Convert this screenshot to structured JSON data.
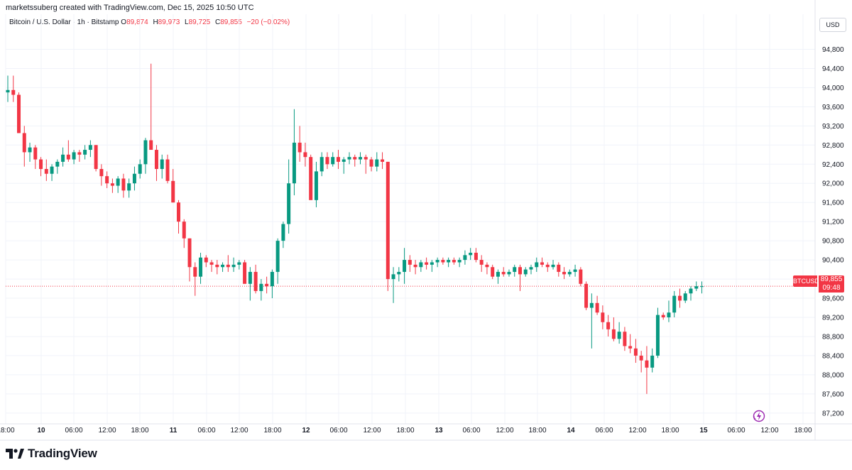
{
  "header": {
    "credit": "marketssuberg created with TradingView.com, Dec 15, 2025 10:50 UTC"
  },
  "symbol": {
    "name": "Bitcoin / U.S. Dollar · 1h · Bitstamp",
    "o_label": "O",
    "o_value": "89,874",
    "h_label": "H",
    "h_value": "89,973",
    "l_label": "L",
    "l_value": "89,725",
    "c_label": "C",
    "c_value": "89,855",
    "change": "−20 (−0.02%)"
  },
  "price_axis": {
    "currency": "USD",
    "ticks": [
      "94,800",
      "94,400",
      "94,000",
      "93,600",
      "93,200",
      "92,800",
      "92,400",
      "92,000",
      "91,600",
      "91,200",
      "90,800",
      "90,400",
      "90,000",
      "89,600",
      "89,200",
      "88,800",
      "88,400",
      "88,000",
      "87,600",
      "87,200"
    ]
  },
  "time_axis": {
    "ticks": [
      "18:00",
      "10",
      "06:00",
      "12:00",
      "18:00",
      "11",
      "06:00",
      "12:00",
      "18:00",
      "12",
      "06:00",
      "12:00",
      "18:00",
      "13",
      "06:00",
      "12:00",
      "18:00",
      "14",
      "06:00",
      "12:00",
      "18:00",
      "15",
      "06:00",
      "12:00",
      "18:00"
    ]
  },
  "last_price": {
    "symbol": "BTCUSD",
    "value": "89,855",
    "countdown": "09:48"
  },
  "footer": {
    "brand": "TradingView"
  },
  "colors": {
    "up": "#089981",
    "down": "#F23645",
    "grid": "#f0f3fa",
    "text": "#131722"
  },
  "chart_data": {
    "type": "candlestick",
    "title": "Bitcoin / U.S. Dollar · 1h · Bitstamp",
    "ylim": [
      86950,
      95250
    ],
    "y_ticks": [
      94800,
      94400,
      94000,
      93600,
      93200,
      92800,
      92400,
      92000,
      91600,
      91200,
      90800,
      90400,
      90000,
      89600,
      89200,
      88800,
      88400,
      88000,
      87600,
      87200
    ],
    "x_start": "Dec 9, 2025 ~19:00",
    "interval": "1h",
    "candles": [
      [
        93900,
        94250,
        93700,
        93950
      ],
      [
        93950,
        94250,
        93700,
        93850
      ],
      [
        93850,
        93900,
        93050,
        93050
      ],
      [
        93050,
        93200,
        92350,
        92650
      ],
      [
        92650,
        92850,
        92450,
        92750
      ],
      [
        92750,
        92800,
        92300,
        92500
      ],
      [
        92500,
        92550,
        92150,
        92300
      ],
      [
        92300,
        92500,
        92050,
        92200
      ],
      [
        92200,
        92400,
        92050,
        92350
      ],
      [
        92350,
        92500,
        92200,
        92450
      ],
      [
        92450,
        92750,
        92350,
        92600
      ],
      [
        92600,
        92900,
        92450,
        92500
      ],
      [
        92500,
        92700,
        92400,
        92650
      ],
      [
        92650,
        92700,
        92450,
        92600
      ],
      [
        92600,
        92800,
        92500,
        92700
      ],
      [
        92700,
        92900,
        92550,
        92800
      ],
      [
        92800,
        92800,
        92250,
        92300
      ],
      [
        92300,
        92400,
        91950,
        92150
      ],
      [
        92150,
        92250,
        91900,
        92000
      ],
      [
        92000,
        92100,
        91800,
        91950
      ],
      [
        91950,
        92150,
        91800,
        92100
      ],
      [
        92100,
        92200,
        91700,
        91850
      ],
      [
        91850,
        92100,
        91700,
        92000
      ],
      [
        92000,
        92350,
        91850,
        92200
      ],
      [
        92200,
        92500,
        92100,
        92400
      ],
      [
        92400,
        92950,
        92200,
        92900
      ],
      [
        92900,
        94500,
        92750,
        92700
      ],
      [
        92700,
        92800,
        92050,
        92300
      ],
      [
        92300,
        92600,
        92100,
        92500
      ],
      [
        92500,
        92600,
        92000,
        92050
      ],
      [
        92050,
        92300,
        91600,
        91600
      ],
      [
        91600,
        91650,
        90950,
        91200
      ],
      [
        91200,
        91250,
        90650,
        90850
      ],
      [
        90850,
        90850,
        89950,
        90250
      ],
      [
        90250,
        90350,
        89650,
        90050
      ],
      [
        90050,
        90550,
        89900,
        90450
      ],
      [
        90450,
        90500,
        90250,
        90350
      ],
      [
        90350,
        90400,
        90150,
        90300
      ],
      [
        90300,
        90400,
        90100,
        90250
      ],
      [
        90250,
        90350,
        90150,
        90300
      ],
      [
        90300,
        90500,
        90150,
        90250
      ],
      [
        90250,
        90450,
        90150,
        90300
      ],
      [
        90300,
        90400,
        90200,
        90350
      ],
      [
        90350,
        90400,
        89950,
        89900
      ],
      [
        89900,
        90250,
        89550,
        90150
      ],
      [
        90150,
        90300,
        89700,
        89750
      ],
      [
        89750,
        90000,
        89550,
        89900
      ],
      [
        89900,
        90050,
        89700,
        89850
      ],
      [
        89850,
        90200,
        89600,
        90150
      ],
      [
        90150,
        90850,
        89900,
        90800
      ],
      [
        90800,
        91200,
        90650,
        91150
      ],
      [
        91150,
        92500,
        90950,
        92000
      ],
      [
        92000,
        93550,
        91750,
        92850
      ],
      [
        92850,
        93200,
        92450,
        92650
      ],
      [
        92650,
        92850,
        92350,
        92550
      ],
      [
        92550,
        92600,
        91700,
        91650
      ],
      [
        91650,
        92450,
        91500,
        92250
      ],
      [
        92250,
        92650,
        92150,
        92550
      ],
      [
        92550,
        92650,
        92300,
        92400
      ],
      [
        92400,
        92650,
        92350,
        92550
      ],
      [
        92550,
        92700,
        92300,
        92450
      ],
      [
        92450,
        92550,
        92200,
        92500
      ],
      [
        92500,
        92650,
        92400,
        92550
      ],
      [
        92550,
        92600,
        92350,
        92500
      ],
      [
        92500,
        92650,
        92400,
        92550
      ],
      [
        92550,
        92600,
        92200,
        92500
      ],
      [
        92500,
        92550,
        92250,
        92350
      ],
      [
        92350,
        92650,
        92250,
        92500
      ],
      [
        92500,
        92650,
        92300,
        92450
      ],
      [
        92450,
        92450,
        89750,
        90000
      ],
      [
        90000,
        90250,
        89500,
        90100
      ],
      [
        90100,
        90250,
        89950,
        90150
      ],
      [
        90150,
        90650,
        89900,
        90400
      ],
      [
        90400,
        90500,
        90150,
        90300
      ],
      [
        90300,
        90400,
        90100,
        90250
      ],
      [
        90250,
        90400,
        90150,
        90350
      ],
      [
        90350,
        90450,
        90200,
        90300
      ],
      [
        90300,
        90400,
        90150,
        90350
      ],
      [
        90350,
        90450,
        90250,
        90400
      ],
      [
        90400,
        90450,
        90300,
        90350
      ],
      [
        90350,
        90450,
        90250,
        90400
      ],
      [
        90400,
        90450,
        90300,
        90350
      ],
      [
        90350,
        90450,
        90250,
        90400
      ],
      [
        90400,
        90600,
        90300,
        90500
      ],
      [
        90500,
        90650,
        90400,
        90550
      ],
      [
        90550,
        90650,
        90350,
        90400
      ],
      [
        90400,
        90500,
        90150,
        90300
      ],
      [
        90300,
        90350,
        90100,
        90250
      ],
      [
        90250,
        90300,
        90000,
        90050
      ],
      [
        90050,
        90200,
        89900,
        90150
      ],
      [
        90150,
        90250,
        90050,
        90100
      ],
      [
        90100,
        90200,
        90050,
        90150
      ],
      [
        90150,
        90300,
        90050,
        90250
      ],
      [
        90250,
        90300,
        89750,
        90100
      ],
      [
        90100,
        90250,
        90050,
        90200
      ],
      [
        90200,
        90300,
        90100,
        90250
      ],
      [
        90250,
        90450,
        90150,
        90350
      ],
      [
        90350,
        90450,
        90250,
        90300
      ],
      [
        90300,
        90350,
        90150,
        90250
      ],
      [
        90250,
        90400,
        90200,
        90300
      ],
      [
        90300,
        90350,
        90050,
        90150
      ],
      [
        90150,
        90250,
        90000,
        90100
      ],
      [
        90100,
        90200,
        90050,
        90150
      ],
      [
        90150,
        90300,
        90050,
        90200
      ],
      [
        90200,
        90250,
        89850,
        89900
      ],
      [
        89900,
        89950,
        89350,
        89400
      ],
      [
        89400,
        89700,
        88550,
        89500
      ],
      [
        89500,
        89650,
        89250,
        89300
      ],
      [
        89300,
        89450,
        88950,
        89100
      ],
      [
        89100,
        89250,
        88800,
        88950
      ],
      [
        88950,
        89200,
        88700,
        88750
      ],
      [
        88750,
        89100,
        88650,
        88900
      ],
      [
        88900,
        89000,
        88500,
        88600
      ],
      [
        88600,
        88850,
        88450,
        88550
      ],
      [
        88550,
        88750,
        88250,
        88400
      ],
      [
        88400,
        88500,
        88050,
        88300
      ],
      [
        88300,
        88600,
        87600,
        88150
      ],
      [
        88150,
        88550,
        88050,
        88400
      ],
      [
        88400,
        89400,
        88350,
        89250
      ],
      [
        89250,
        89300,
        89150,
        89200
      ],
      [
        89200,
        89550,
        89100,
        89300
      ],
      [
        89300,
        89750,
        89200,
        89650
      ],
      [
        89650,
        89800,
        89400,
        89550
      ],
      [
        89550,
        89750,
        89500,
        89700
      ],
      [
        89700,
        89850,
        89550,
        89800
      ],
      [
        89800,
        89950,
        89750,
        89850
      ],
      [
        89850,
        89950,
        89700,
        89850
      ]
    ]
  }
}
